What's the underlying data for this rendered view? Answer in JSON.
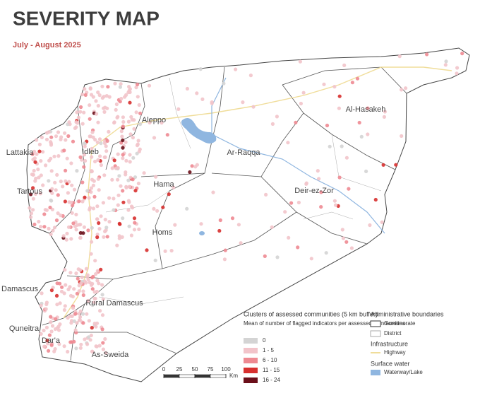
{
  "header": {
    "title": "SEVERITY MAP",
    "subtitle": "July - August 2025"
  },
  "map": {
    "places": [
      "Aleppo",
      "Al-Hasakeh",
      "Ar-Raqqa",
      "Lattakia",
      "Idleb",
      "Tartous",
      "Hama",
      "Deir-ez-Zor",
      "Homs",
      "Damascus",
      "Rural Damascus",
      "Quneitra",
      "Dar'a",
      "As-Sweida"
    ]
  },
  "legend": {
    "clusters": {
      "title": "Clusters of assessed communities (5 km buffer)",
      "subtitle": "Mean of number of flagged indicators per assessed communities",
      "classes": [
        {
          "label": "0",
          "color": "#d4d4d4"
        },
        {
          "label": "1 - 5",
          "color": "#f2c4ca"
        },
        {
          "label": "6 - 10",
          "color": "#ee8a92"
        },
        {
          "label": "11 - 15",
          "color": "#d7302f"
        },
        {
          "label": "16 - 24",
          "color": "#6b0f1a"
        }
      ]
    },
    "admin": {
      "title": "Administrative boundaries",
      "items": [
        "Governorate",
        "District"
      ]
    },
    "infrastructure": {
      "title": "Infrastructure",
      "items": [
        "Highway"
      ]
    },
    "water": {
      "title": "Surface water",
      "items": [
        "Waterway/Lake"
      ]
    }
  },
  "scale_bar": {
    "ticks": [
      0,
      25,
      50,
      75,
      100
    ],
    "unit": "Km"
  }
}
